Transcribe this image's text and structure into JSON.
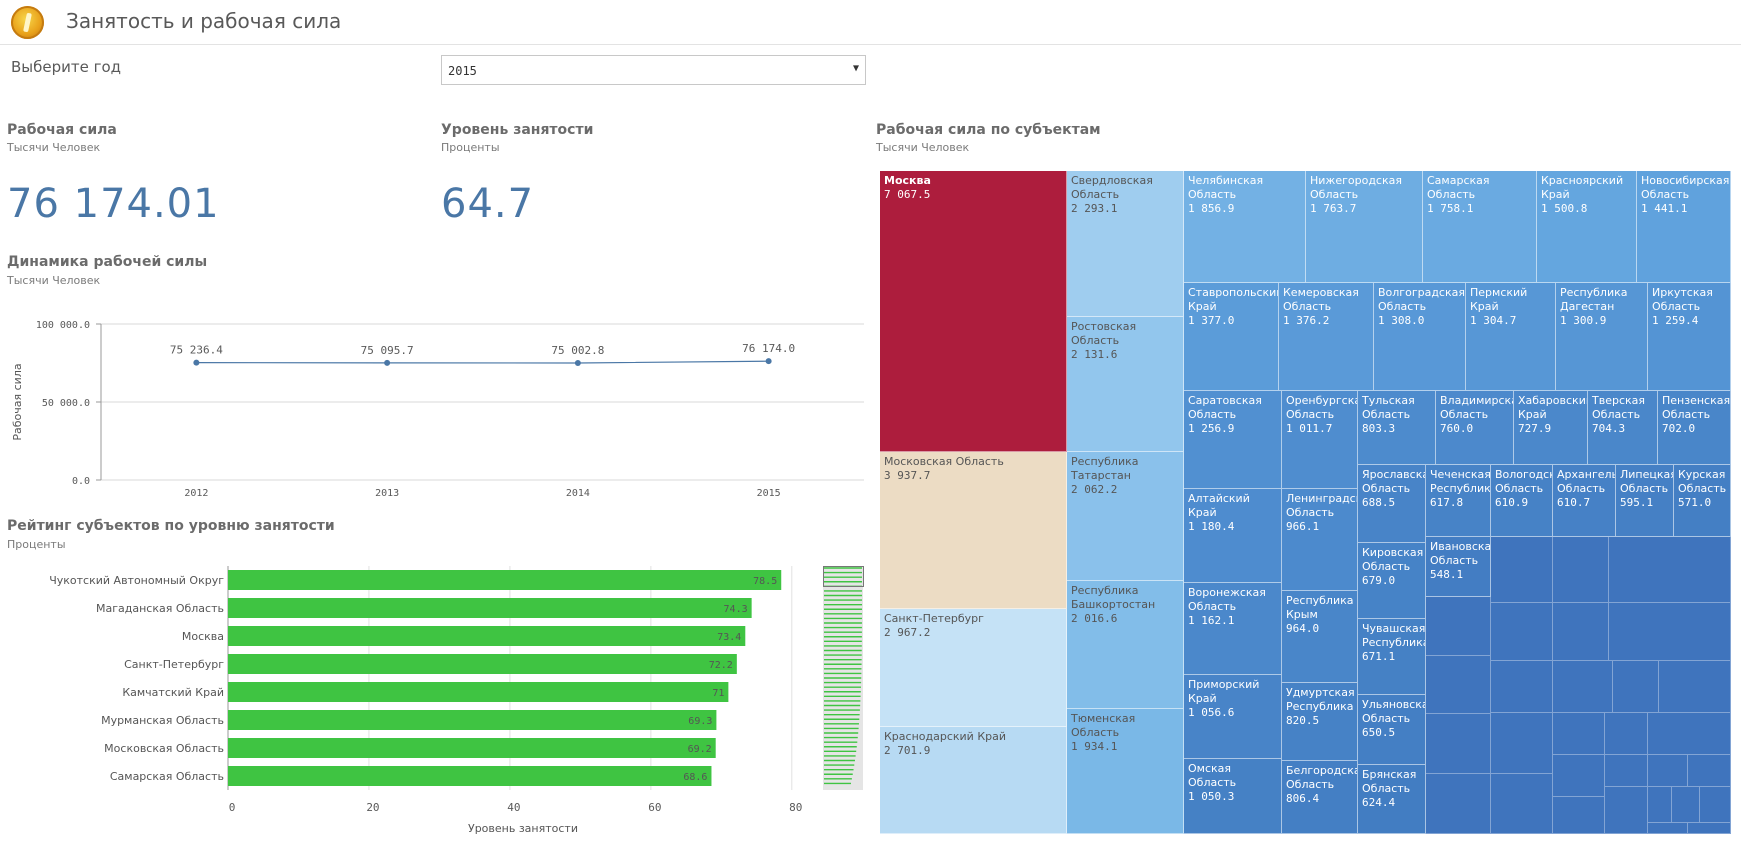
{
  "app": {
    "title": "Занятость и рабочая сила"
  },
  "filter": {
    "label": "Выберите год",
    "selected": "2015"
  },
  "kpi_labor": {
    "title": "Рабочая сила",
    "unit": "Тысячи Человек",
    "value": "76 174.01"
  },
  "kpi_employment": {
    "title": "Уровень занятости",
    "unit": "Проценты",
    "value": "64.7"
  },
  "line_chart": {
    "title": "Динамика рабочей силы",
    "unit": "Тысячи Человек",
    "ylabel": "Рабочая сила",
    "yticks": [
      "100 000.0",
      "50 000.0",
      "0.0"
    ]
  },
  "bar_chart": {
    "title": "Рейтинг субъектов по уровню занятости",
    "unit": "Проценты",
    "xlabel": "Уровень занятости",
    "xticks": [
      "0",
      "20",
      "40",
      "60",
      "80"
    ]
  },
  "treemap": {
    "title": "Рабочая сила по субъектам",
    "unit": "Тысячи Человек"
  },
  "chart_data": [
    {
      "type": "line",
      "title": "Динамика рабочей силы",
      "ylabel": "Рабочая сила",
      "x": [
        "2012",
        "2013",
        "2014",
        "2015"
      ],
      "values": [
        75236.4,
        75095.7,
        75002.8,
        76174.0
      ],
      "labels": [
        "75 236.4",
        "75 095.7",
        "75 002.8",
        "76 174.0"
      ],
      "ylim": [
        0,
        100000
      ],
      "grid": true
    },
    {
      "type": "bar",
      "orientation": "horizontal",
      "title": "Рейтинг субъектов по уровню занятости",
      "xlabel": "Уровень занятости",
      "categories": [
        "Чукотский Автономный Округ",
        "Магаданская Область",
        "Москва",
        "Санкт-Петербург",
        "Камчатский Край",
        "Мурманская Область",
        "Московская Область",
        "Самарская Область"
      ],
      "values": [
        78.5,
        74.3,
        73.4,
        72.2,
        71,
        69.3,
        69.2,
        68.6
      ],
      "labels": [
        "78.5",
        "74.3",
        "73.4",
        "72.2",
        "71",
        "69.3",
        "69.2",
        "68.6"
      ],
      "xlim": [
        0,
        84
      ],
      "color": "#3fc442"
    },
    {
      "type": "treemap",
      "title": "Рабочая сила по субъектам",
      "items": [
        {
          "name": "Москва",
          "value": "7 067.5",
          "color": "#ad1d3d"
        },
        {
          "name": "Московская Область",
          "value": "3 937.7",
          "color": "#ecdcc4"
        },
        {
          "name": "Санкт-Петербург",
          "value": "2 967.2",
          "color": "#c5e2f6"
        },
        {
          "name": "Краснодарский Край",
          "value": "2 701.9",
          "color": "#b7daf3"
        },
        {
          "name": "Свердловская Область",
          "value": "2 293.1",
          "color": "#9fcdef"
        },
        {
          "name": "Ростовская Область",
          "value": "2 131.6",
          "color": "#92c6ed"
        },
        {
          "name": "Республика Татарстан",
          "value": "2 062.2",
          "color": "#8ac1eb"
        },
        {
          "name": "Республика Башкортостан",
          "value": "2 016.6",
          "color": "#82bde9"
        },
        {
          "name": "Тюменская Область",
          "value": "1 934.1",
          "color": "#7ab8e7"
        },
        {
          "name": "Челябинская Область",
          "value": "1 856.9",
          "color": "#73b1e4"
        },
        {
          "name": "Нижегородская Область",
          "value": "1 763.7",
          "color": "#6eade2"
        },
        {
          "name": "Самарская Область",
          "value": "1 758.1",
          "color": "#6aaae1"
        },
        {
          "name": "Красноярский Край",
          "value": "1 500.8",
          "color": "#64a6df"
        },
        {
          "name": "Новосибирская Область",
          "value": "1 441.1",
          "color": "#60a2dd"
        },
        {
          "name": "Ставропольский Край",
          "value": "1 377.0",
          "color": "#5b9cd9"
        },
        {
          "name": "Кемеровская Область",
          "value": "1 376.2",
          "color": "#5a9ad8"
        },
        {
          "name": "Волгоградская Область",
          "value": "1 308.0",
          "color": "#5898d7"
        },
        {
          "name": "Пермский Край",
          "value": "1 304.7",
          "color": "#5797d6"
        },
        {
          "name": "Республика Дагестан",
          "value": "1 300.9",
          "color": "#5696d5"
        },
        {
          "name": "Иркутская Область",
          "value": "1 259.4",
          "color": "#5494d4"
        },
        {
          "name": "Саратовская Область",
          "value": "1 256.9",
          "color": "#5190d1"
        },
        {
          "name": "Оренбургская Область",
          "value": "1 011.7",
          "color": "#4f8dcf"
        },
        {
          "name": "Тульская Область",
          "value": "803.3",
          "color": "#4d8bcd"
        },
        {
          "name": "Владимирская Область",
          "value": "760.0",
          "color": "#4c89cc"
        },
        {
          "name": "Хабаровский Край",
          "value": "727.9",
          "color": "#4b88cb"
        },
        {
          "name": "Тверская Область",
          "value": "704.3",
          "color": "#4a87ca"
        },
        {
          "name": "Пензенская Область",
          "value": "702.0",
          "color": "#4986c9"
        },
        {
          "name": "Алтайский Край",
          "value": "1 180.4",
          "color": "#4e8ccf"
        },
        {
          "name": "Ленинградская Область",
          "value": "966.1",
          "color": "#4c8acd"
        },
        {
          "name": "Ярославская Область",
          "value": "688.5",
          "color": "#4884c8"
        },
        {
          "name": "Чеченская Республика",
          "value": "617.8",
          "color": "#4783c7"
        },
        {
          "name": "Вологодская Область",
          "value": "610.9",
          "color": "#4682c6"
        },
        {
          "name": "Архангельская Область",
          "value": "610.7",
          "color": "#4681c6"
        },
        {
          "name": "Липецкая Область",
          "value": "595.1",
          "color": "#4580c5"
        },
        {
          "name": "Курская Область",
          "value": "571.0",
          "color": "#447fc4"
        },
        {
          "name": "Воронежская Область",
          "value": "1 162.1",
          "color": "#4b88cb"
        },
        {
          "name": "Республика Крым",
          "value": "964.0",
          "color": "#4986c9"
        },
        {
          "name": "Кировская Область",
          "value": "679.0",
          "color": "#4683c7"
        },
        {
          "name": "Ивановская Область",
          "value": "548.1",
          "color": "#437dc3"
        },
        {
          "name": "Приморский Край",
          "value": "1 056.6",
          "color": "#4884c8"
        },
        {
          "name": "Удмуртская Республика",
          "value": "820.5",
          "color": "#4682c6"
        },
        {
          "name": "Чувашская Республика",
          "value": "671.1",
          "color": "#4581c5"
        },
        {
          "name": "Ульяновская Область",
          "value": "650.5",
          "color": "#447fc4"
        },
        {
          "name": "Омская Область",
          "value": "1 050.3",
          "color": "#4581c5"
        },
        {
          "name": "Белгородская Область",
          "value": "806.4",
          "color": "#447fc4"
        },
        {
          "name": "Брянская Область",
          "value": "624.4",
          "color": "#427dc2"
        }
      ]
    }
  ]
}
